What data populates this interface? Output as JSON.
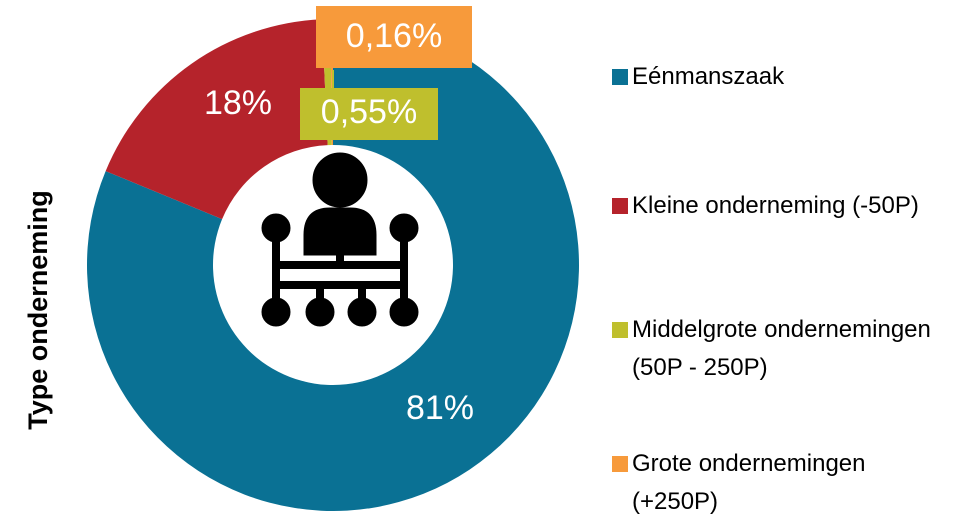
{
  "chart_data": {
    "type": "donut",
    "title": "Type onderneming",
    "categories": [
      "Eénmanszaak",
      "Kleine onderneming (-50P)",
      "Middelgrote ondernemingen (50P - 250P)",
      "Grote ondernemingen (+250P)"
    ],
    "values": [
      81,
      18,
      0.55,
      0.16
    ],
    "value_labels": [
      "81%",
      "18%",
      "0,55%",
      "0,16%"
    ],
    "colors": [
      "#0a7194",
      "#b5232b",
      "#bfbf2d",
      "#f79a3b"
    ]
  }
}
